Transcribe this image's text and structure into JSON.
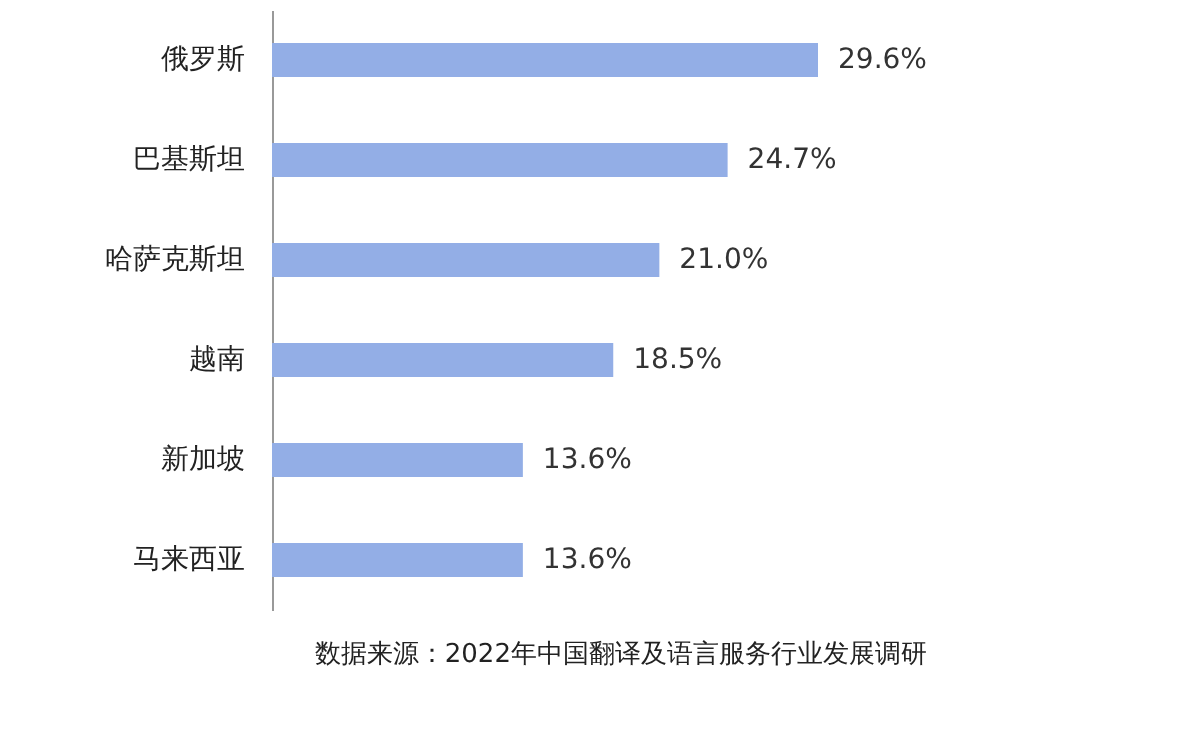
{
  "chart_data": {
    "type": "bar",
    "orientation": "horizontal",
    "categories": [
      "俄罗斯",
      "巴基斯坦",
      "哈萨克斯坦",
      "越南",
      "新加坡",
      "马来西亚"
    ],
    "values": [
      29.6,
      24.7,
      21.0,
      18.5,
      13.6,
      13.6
    ],
    "value_labels": [
      "29.6%",
      "24.7%",
      "21.0%",
      "18.5%",
      "13.6%",
      "13.6%"
    ],
    "color": "#93aee6",
    "annotations": [
      "数据来源：2022年中国翻译及语言服务行业发展调研"
    ]
  }
}
